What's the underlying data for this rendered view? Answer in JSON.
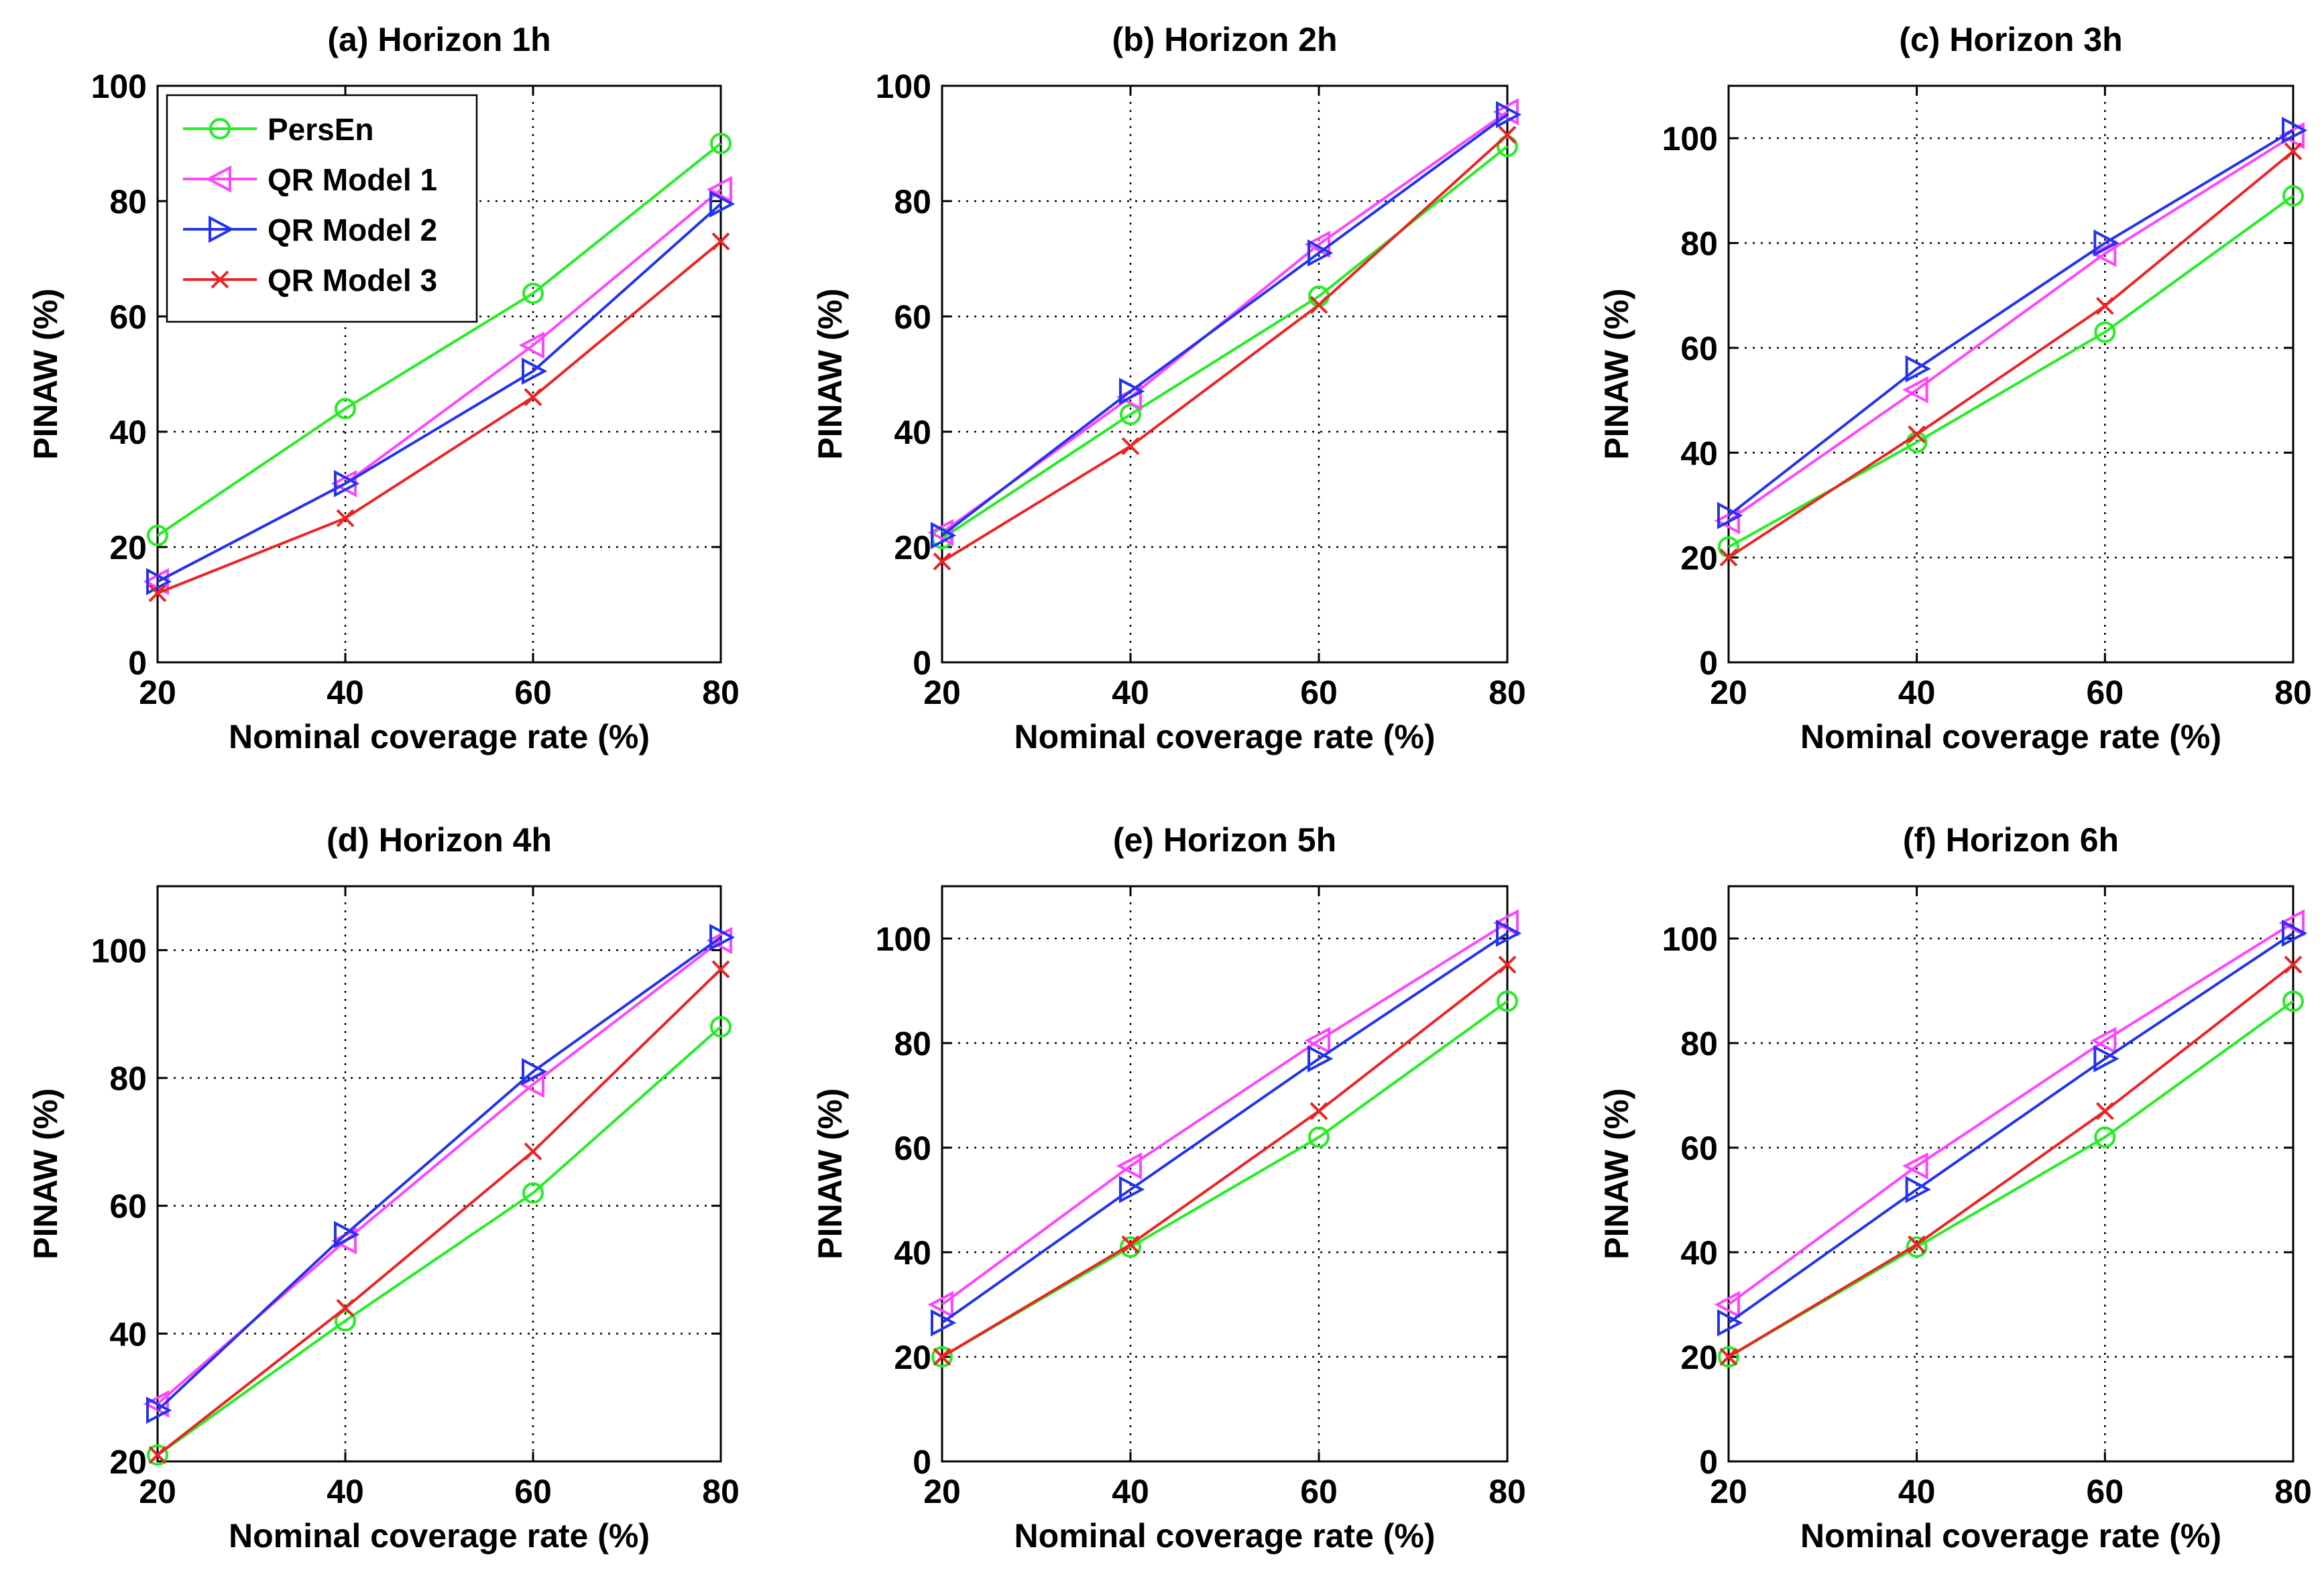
{
  "chart_data": [
    {
      "type": "line",
      "title": "(a) Horizon 1h",
      "xlabel": "Nominal coverage rate (%)",
      "ylabel": "PINAW (%)",
      "x": [
        20,
        40,
        60,
        80
      ],
      "xlim": [
        20,
        80
      ],
      "ylim": [
        0,
        100
      ],
      "yticks": [
        0,
        20,
        40,
        60,
        80,
        100
      ],
      "grid": true,
      "legend": "top-left",
      "series": [
        {
          "name": "PersEn",
          "values": [
            22,
            44,
            64,
            90
          ]
        },
        {
          "name": "QR Model 1",
          "values": [
            14,
            31,
            55,
            82
          ]
        },
        {
          "name": "QR Model 2",
          "values": [
            14,
            31,
            50.5,
            79.5
          ]
        },
        {
          "name": "QR Model 3",
          "values": [
            12,
            25,
            46,
            73
          ]
        }
      ]
    },
    {
      "type": "line",
      "title": "(b) Horizon 2h",
      "xlabel": "Nominal coverage rate (%)",
      "ylabel": "PINAW (%)",
      "x": [
        20,
        40,
        60,
        80
      ],
      "xlim": [
        20,
        80
      ],
      "ylim": [
        0,
        100
      ],
      "yticks": [
        0,
        20,
        40,
        60,
        80,
        100
      ],
      "grid": true,
      "series": [
        {
          "name": "PersEn",
          "values": [
            21.5,
            43,
            63.5,
            89.5
          ]
        },
        {
          "name": "QR Model 1",
          "values": [
            22.5,
            46,
            72.5,
            95.5
          ]
        },
        {
          "name": "QR Model 2",
          "values": [
            22,
            47,
            71,
            95
          ]
        },
        {
          "name": "QR Model 3",
          "values": [
            17.5,
            37.5,
            62,
            91.5
          ]
        }
      ]
    },
    {
      "type": "line",
      "title": "(c) Horizon 3h",
      "xlabel": "Nominal coverage rate (%)",
      "ylabel": "PINAW (%)",
      "x": [
        20,
        40,
        60,
        80
      ],
      "xlim": [
        20,
        80
      ],
      "ylim": [
        0,
        110
      ],
      "yticks": [
        0,
        20,
        40,
        60,
        80,
        100
      ],
      "grid": true,
      "series": [
        {
          "name": "PersEn",
          "values": [
            22,
            42,
            63,
            89
          ]
        },
        {
          "name": "QR Model 1",
          "values": [
            27,
            52,
            78,
            100.5
          ]
        },
        {
          "name": "QR Model 2",
          "values": [
            28,
            56,
            80,
            101.5
          ]
        },
        {
          "name": "QR Model 3",
          "values": [
            20,
            43.5,
            68,
            97.5
          ]
        }
      ]
    },
    {
      "type": "line",
      "title": "(d) Horizon 4h",
      "xlabel": "Nominal coverage rate (%)",
      "ylabel": "PINAW (%)",
      "x": [
        20,
        40,
        60,
        80
      ],
      "xlim": [
        20,
        80
      ],
      "ylim": [
        20,
        110
      ],
      "yticks": [
        20,
        40,
        60,
        80,
        100
      ],
      "grid": true,
      "series": [
        {
          "name": "PersEn",
          "values": [
            21,
            42,
            62,
            88
          ]
        },
        {
          "name": "QR Model 1",
          "values": [
            29,
            54.5,
            79,
            101.5
          ]
        },
        {
          "name": "QR Model 2",
          "values": [
            28,
            55.5,
            81,
            102
          ]
        },
        {
          "name": "QR Model 3",
          "values": [
            21,
            44,
            68.5,
            97
          ]
        }
      ]
    },
    {
      "type": "line",
      "title": "(e) Horizon 5h",
      "xlabel": "Nominal coverage rate (%)",
      "ylabel": "PINAW (%)",
      "x": [
        20,
        40,
        60,
        80
      ],
      "xlim": [
        20,
        80
      ],
      "ylim": [
        0,
        110
      ],
      "yticks": [
        0,
        20,
        40,
        60,
        80,
        100
      ],
      "grid": true,
      "series": [
        {
          "name": "PersEn",
          "values": [
            20,
            41,
            62,
            88
          ]
        },
        {
          "name": "QR Model 1",
          "values": [
            30,
            56.5,
            80.5,
            103
          ]
        },
        {
          "name": "QR Model 2",
          "values": [
            26.5,
            52,
            77,
            101
          ]
        },
        {
          "name": "QR Model 3",
          "values": [
            20,
            41.5,
            67,
            95
          ]
        }
      ]
    },
    {
      "type": "line",
      "title": "(f) Horizon 6h",
      "xlabel": "Nominal coverage rate (%)",
      "ylabel": "PINAW (%)",
      "x": [
        20,
        40,
        60,
        80
      ],
      "xlim": [
        20,
        80
      ],
      "ylim": [
        0,
        110
      ],
      "yticks": [
        0,
        20,
        40,
        60,
        80,
        100
      ],
      "grid": true,
      "series": [
        {
          "name": "PersEn",
          "values": [
            20,
            41,
            62,
            88
          ]
        },
        {
          "name": "QR Model 1",
          "values": [
            30,
            56.5,
            80.5,
            103
          ]
        },
        {
          "name": "QR Model 2",
          "values": [
            26.5,
            52,
            77,
            101
          ]
        },
        {
          "name": "QR Model 3",
          "values": [
            20,
            41.5,
            67,
            95
          ]
        }
      ]
    }
  ],
  "styles": {
    "series": [
      {
        "color": "#22ee22",
        "marker": "circle"
      },
      {
        "color": "#ff44ff",
        "marker": "triangle-left"
      },
      {
        "color": "#2233ee",
        "marker": "triangle-right"
      },
      {
        "color": "#ee2222",
        "marker": "x"
      }
    ]
  }
}
